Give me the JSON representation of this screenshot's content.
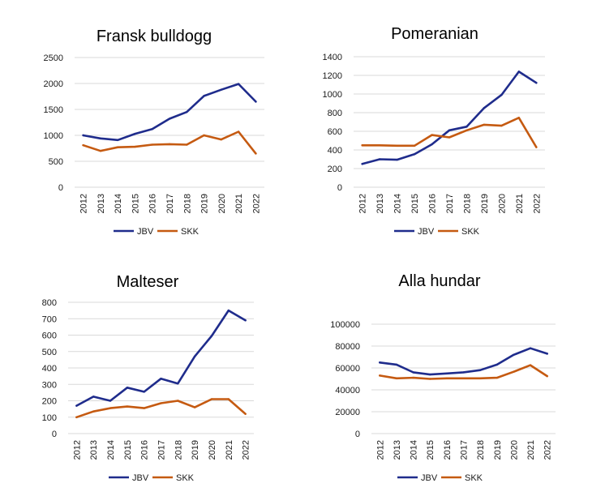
{
  "colors": {
    "JBV": "#1F2C8C",
    "SKK": "#C55A11",
    "grid": "#D9D9D9"
  },
  "chart_data": [
    {
      "type": "line",
      "title": "Fransk bulldogg",
      "x": [
        "2012",
        "2013",
        "2014",
        "2015",
        "2016",
        "2017",
        "2018",
        "2019",
        "2020",
        "2021",
        "2022"
      ],
      "ylim": [
        0,
        2500
      ],
      "yticks": [
        0,
        500,
        1000,
        1500,
        2000,
        2500
      ],
      "ytick_labels": [
        "0",
        "500",
        "1000",
        "1500",
        "2000",
        "2500"
      ],
      "grid": true,
      "legend": "bottom",
      "series": [
        {
          "name": "JBV",
          "values": [
            1000,
            940,
            910,
            1030,
            1120,
            1320,
            1450,
            1760,
            1880,
            1990,
            1650
          ]
        },
        {
          "name": "SKK",
          "values": [
            810,
            700,
            770,
            780,
            820,
            830,
            820,
            1000,
            920,
            1070,
            650
          ]
        }
      ]
    },
    {
      "type": "line",
      "title": "Pomeranian",
      "x": [
        "2012",
        "2013",
        "2014",
        "2015",
        "2016",
        "2017",
        "2018",
        "2019",
        "2020",
        "2021",
        "2022"
      ],
      "ylim": [
        0,
        1400
      ],
      "yticks": [
        0,
        200,
        400,
        600,
        800,
        1000,
        1200,
        1400
      ],
      "ytick_labels": [
        "0",
        "200",
        "400",
        "600",
        "800",
        "1000",
        "1200",
        "1400"
      ],
      "grid": true,
      "legend": "bottom",
      "series": [
        {
          "name": "JBV",
          "values": [
            250,
            300,
            295,
            355,
            460,
            610,
            650,
            850,
            990,
            1240,
            1120
          ]
        },
        {
          "name": "SKK",
          "values": [
            450,
            450,
            445,
            445,
            560,
            535,
            610,
            670,
            660,
            745,
            430
          ]
        }
      ]
    },
    {
      "type": "line",
      "title": "Malteser",
      "x": [
        "2012",
        "2013",
        "2014",
        "2015",
        "2016",
        "2017",
        "2018",
        "2019",
        "2020",
        "2021",
        "2022"
      ],
      "ylim": [
        0,
        800
      ],
      "yticks": [
        0,
        100,
        200,
        300,
        400,
        500,
        600,
        700,
        800
      ],
      "ytick_labels": [
        "0",
        "100",
        "200",
        "300",
        "400",
        "500",
        "600",
        "700",
        "800"
      ],
      "grid": true,
      "legend": "bottom",
      "series": [
        {
          "name": "JBV",
          "values": [
            170,
            225,
            200,
            280,
            255,
            335,
            305,
            470,
            595,
            750,
            690
          ]
        },
        {
          "name": "SKK",
          "values": [
            100,
            135,
            155,
            165,
            155,
            185,
            200,
            160,
            210,
            210,
            120
          ]
        }
      ]
    },
    {
      "type": "line",
      "title": "Alla hundar",
      "x": [
        "2012",
        "2013",
        "2014",
        "2015",
        "2016",
        "2017",
        "2018",
        "2019",
        "2020",
        "2021",
        "2022"
      ],
      "ylim": [
        0,
        100000
      ],
      "yticks": [
        0,
        20000,
        40000,
        60000,
        80000,
        100000
      ],
      "ytick_labels": [
        "0",
        "20000",
        "40000",
        "60000",
        "80000",
        "100000"
      ],
      "grid": true,
      "legend": "bottom",
      "series": [
        {
          "name": "JBV",
          "values": [
            65000,
            63000,
            56000,
            54000,
            55000,
            56000,
            58000,
            63000,
            72000,
            78000,
            73000
          ]
        },
        {
          "name": "SKK",
          "values": [
            53000,
            50500,
            51000,
            50000,
            50500,
            50500,
            50500,
            51000,
            56500,
            62500,
            52500
          ]
        }
      ]
    }
  ]
}
